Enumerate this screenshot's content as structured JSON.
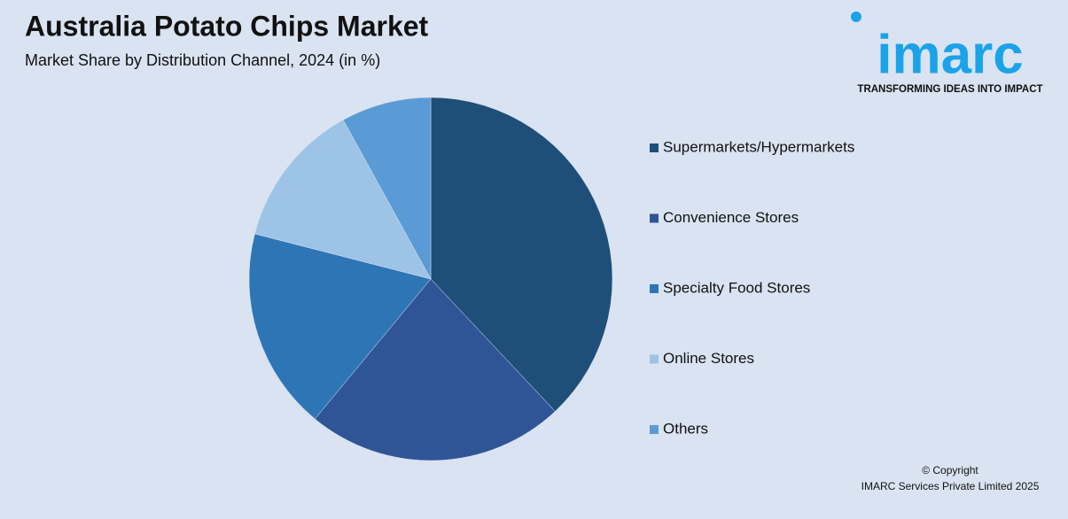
{
  "chart_data": {
    "type": "pie",
    "title": "Australia Potato Chips Market",
    "subtitle": "Market Share by Distribution Channel, 2024 (in %)",
    "categories": [
      "Supermarkets/Hypermarkets",
      "Convenience Stores",
      "Specialty Food Stores",
      "Online Stores",
      "Others"
    ],
    "values": [
      38,
      23,
      18,
      13,
      8
    ],
    "colors": [
      "#1f4e79",
      "#2f5597",
      "#2e75b6",
      "#9dc3e6",
      "#5b9bd5"
    ],
    "legend": "right"
  },
  "logo": {
    "name": "imarc",
    "tagline": "TRANSFORMING IDEAS INTO IMPACT"
  },
  "copyright": {
    "line1": "© Copyright",
    "line2": "IMARC Services Private Limited 2025"
  }
}
